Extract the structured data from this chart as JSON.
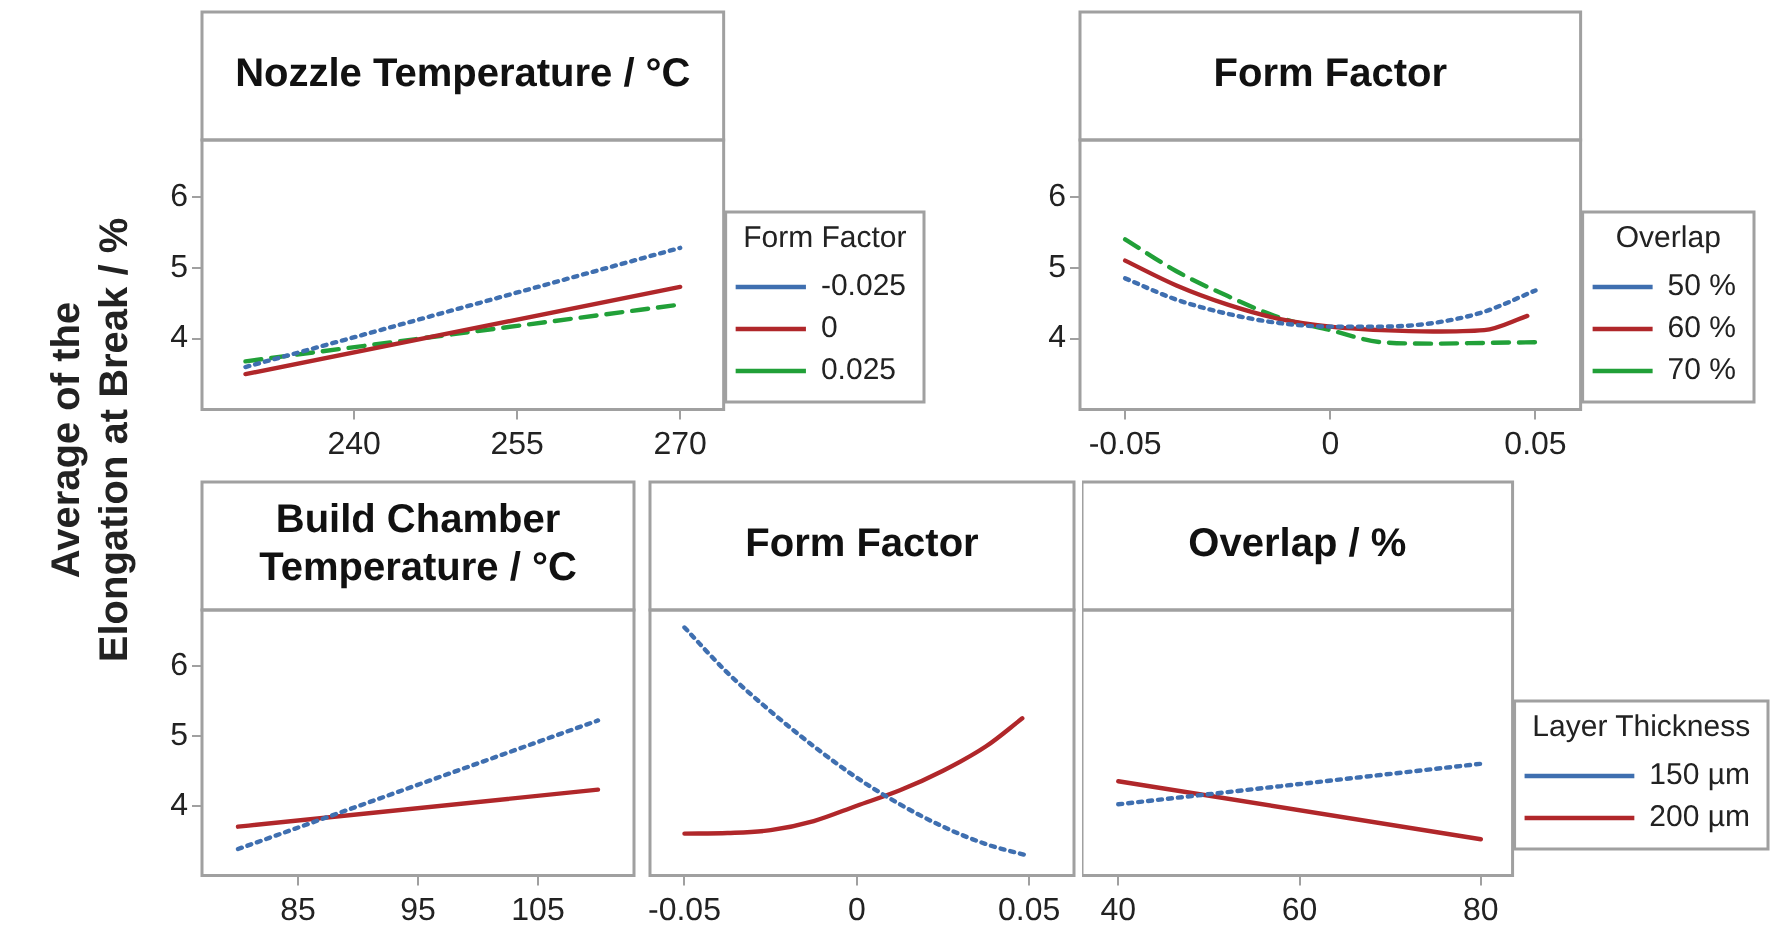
{
  "chart_data": [
    {
      "type": "line",
      "title": "Nozzle Temperature / °C",
      "ylabel": "Average of the Elongation at Break / %",
      "legend_title": "Form Factor",
      "legend": "right",
      "marker": "none",
      "xlim": [
        226,
        274
      ],
      "xticks": [
        240,
        255,
        270
      ],
      "ylim": [
        3,
        6.8
      ],
      "yticks": [
        4,
        5,
        6
      ],
      "series": [
        {
          "name": "-0.025",
          "color": "#3f6fb0",
          "line_style": "dotted",
          "x": [
            230,
            270
          ],
          "values": [
            3.6,
            5.28
          ]
        },
        {
          "name": "0",
          "color": "#b0272a",
          "line_style": "solid",
          "x": [
            230,
            270
          ],
          "values": [
            3.5,
            4.73
          ]
        },
        {
          "name": "0.025",
          "color": "#21a038",
          "line_style": "dashed",
          "x": [
            230,
            270
          ],
          "values": [
            3.68,
            4.48
          ]
        }
      ]
    },
    {
      "type": "line",
      "title": "Form Factor",
      "legend_title": "Overlap",
      "legend": "right",
      "marker": "none",
      "xlim": [
        -0.061,
        0.061
      ],
      "xticks": [
        -0.05,
        0,
        0.05
      ],
      "ylim": [
        3,
        6.8
      ],
      "yticks": [
        4,
        5,
        6
      ],
      "series": [
        {
          "name": "50 %",
          "color": "#3f6fb0",
          "line_style": "dotted",
          "x": [
            -0.05,
            -0.0375,
            -0.025,
            -0.0125,
            0,
            0.0125,
            0.025,
            0.0375,
            0.05
          ],
          "values": [
            4.85,
            4.55,
            4.35,
            4.22,
            4.17,
            4.17,
            4.22,
            4.38,
            4.68
          ]
        },
        {
          "name": "60 %",
          "color": "#b0272a",
          "line_style": "solid",
          "x": [
            -0.05,
            -0.0375,
            -0.025,
            -0.0125,
            0,
            0.0125,
            0.025,
            0.0375,
            0.048
          ],
          "values": [
            5.1,
            4.75,
            4.48,
            4.28,
            4.17,
            4.12,
            4.1,
            4.12,
            4.32
          ]
        },
        {
          "name": "70 %",
          "color": "#21a038",
          "line_style": "dashed",
          "x": [
            -0.05,
            -0.0375,
            -0.025,
            -0.0125,
            0,
            0.0125,
            0.025,
            0.0375,
            0.05
          ],
          "values": [
            5.4,
            4.95,
            4.6,
            4.3,
            4.12,
            3.95,
            3.93,
            3.94,
            3.95
          ]
        }
      ]
    },
    {
      "type": "line",
      "title": "Build Chamber Temperature / °C",
      "marker": "none",
      "xlim": [
        77,
        113
      ],
      "xticks": [
        85,
        95,
        105
      ],
      "ylim": [
        3,
        6.8
      ],
      "yticks": [
        4,
        5,
        6
      ],
      "series": [
        {
          "color": "#3f6fb0",
          "line_style": "dotted",
          "x": [
            80,
            110
          ],
          "values": [
            3.38,
            5.22
          ]
        },
        {
          "color": "#b0272a",
          "line_style": "solid",
          "x": [
            80,
            110
          ],
          "values": [
            3.7,
            4.23
          ]
        }
      ]
    },
    {
      "type": "line",
      "title": "Form Factor",
      "marker": "none",
      "tick_labels": "x",
      "xlim": [
        -0.06,
        0.063
      ],
      "xticks": [
        -0.05,
        0,
        0.05
      ],
      "ylim": [
        3,
        6.8
      ],
      "yticks": [
        4,
        5,
        6
      ],
      "series": [
        {
          "color": "#3f6fb0",
          "line_style": "dotted",
          "x": [
            -0.05,
            -0.0375,
            -0.025,
            -0.0125,
            0,
            0.0125,
            0.025,
            0.0375,
            0.05
          ],
          "values": [
            6.55,
            5.9,
            5.35,
            4.85,
            4.4,
            4.02,
            3.7,
            3.45,
            3.28
          ]
        },
        {
          "color": "#b0272a",
          "line_style": "solid",
          "x": [
            -0.05,
            -0.0375,
            -0.025,
            -0.0125,
            0,
            0.0125,
            0.025,
            0.0375,
            0.048
          ],
          "values": [
            3.6,
            3.61,
            3.65,
            3.78,
            4.0,
            4.22,
            4.5,
            4.85,
            5.25
          ]
        }
      ]
    },
    {
      "type": "line",
      "title": "Overlap / %",
      "legend_title": "Layer Thickness",
      "legend": "right",
      "marker": "none",
      "tick_labels": "x",
      "xlim": [
        36,
        83.5
      ],
      "xticks": [
        40,
        60,
        80
      ],
      "ylim": [
        3,
        6.8
      ],
      "yticks": [
        4,
        5,
        6
      ],
      "series": [
        {
          "name": "150 µm",
          "color": "#3f6fb0",
          "line_style": "dotted",
          "x": [
            40,
            80
          ],
          "values": [
            4.02,
            4.6
          ]
        },
        {
          "name": "200 µm",
          "color": "#b0272a",
          "line_style": "solid",
          "x": [
            40,
            80
          ],
          "values": [
            4.35,
            3.52
          ]
        }
      ]
    }
  ]
}
